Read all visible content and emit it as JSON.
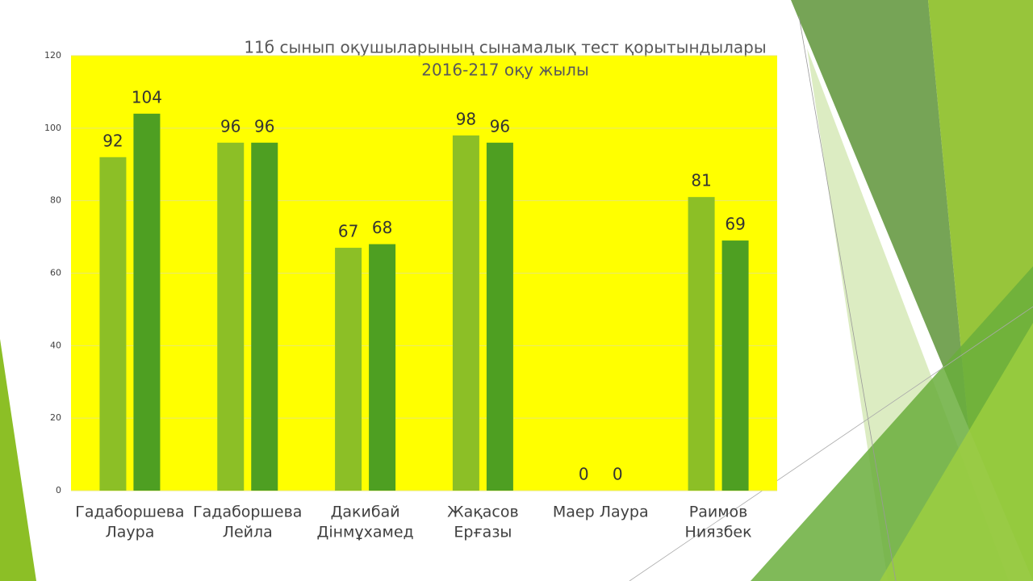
{
  "chart_data": {
    "type": "bar",
    "title_lines": [
      "11б сынып оқушыларының сынамалық тест қорытындылары",
      "2016-217 оқу жылы"
    ],
    "categories": [
      [
        "Гадаборшева",
        "Лаура"
      ],
      [
        "Гадаборшева",
        "Лейла"
      ],
      [
        "Дакибай",
        "Дінмұхамед"
      ],
      [
        "Жақасов",
        "Ерғазы"
      ],
      [
        "Маер   Лаура"
      ],
      [
        "Раимов",
        "Ниязбек"
      ]
    ],
    "series": [
      {
        "color": "#8cbf26",
        "values": [
          92,
          96,
          67,
          98,
          0,
          81
        ]
      },
      {
        "color": "#4e9f22",
        "values": [
          104,
          96,
          68,
          96,
          0,
          69
        ]
      }
    ],
    "ylim": [
      0,
      120
    ],
    "yticks": [
      0,
      20,
      40,
      60,
      80,
      100,
      120
    ],
    "grid": true,
    "plot_background": "#ffff00"
  }
}
